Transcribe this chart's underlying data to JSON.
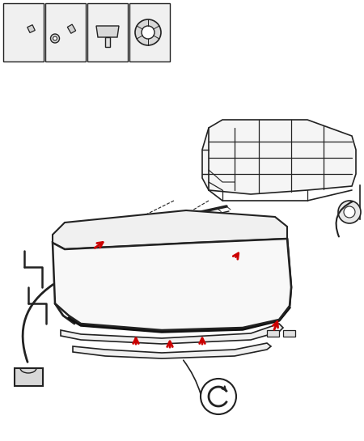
{
  "bg_color": "#ffffff",
  "line_color": "#222222",
  "arrow_color": "#cc0000",
  "fig_width": 4.5,
  "fig_height": 5.45,
  "dpi": 100
}
